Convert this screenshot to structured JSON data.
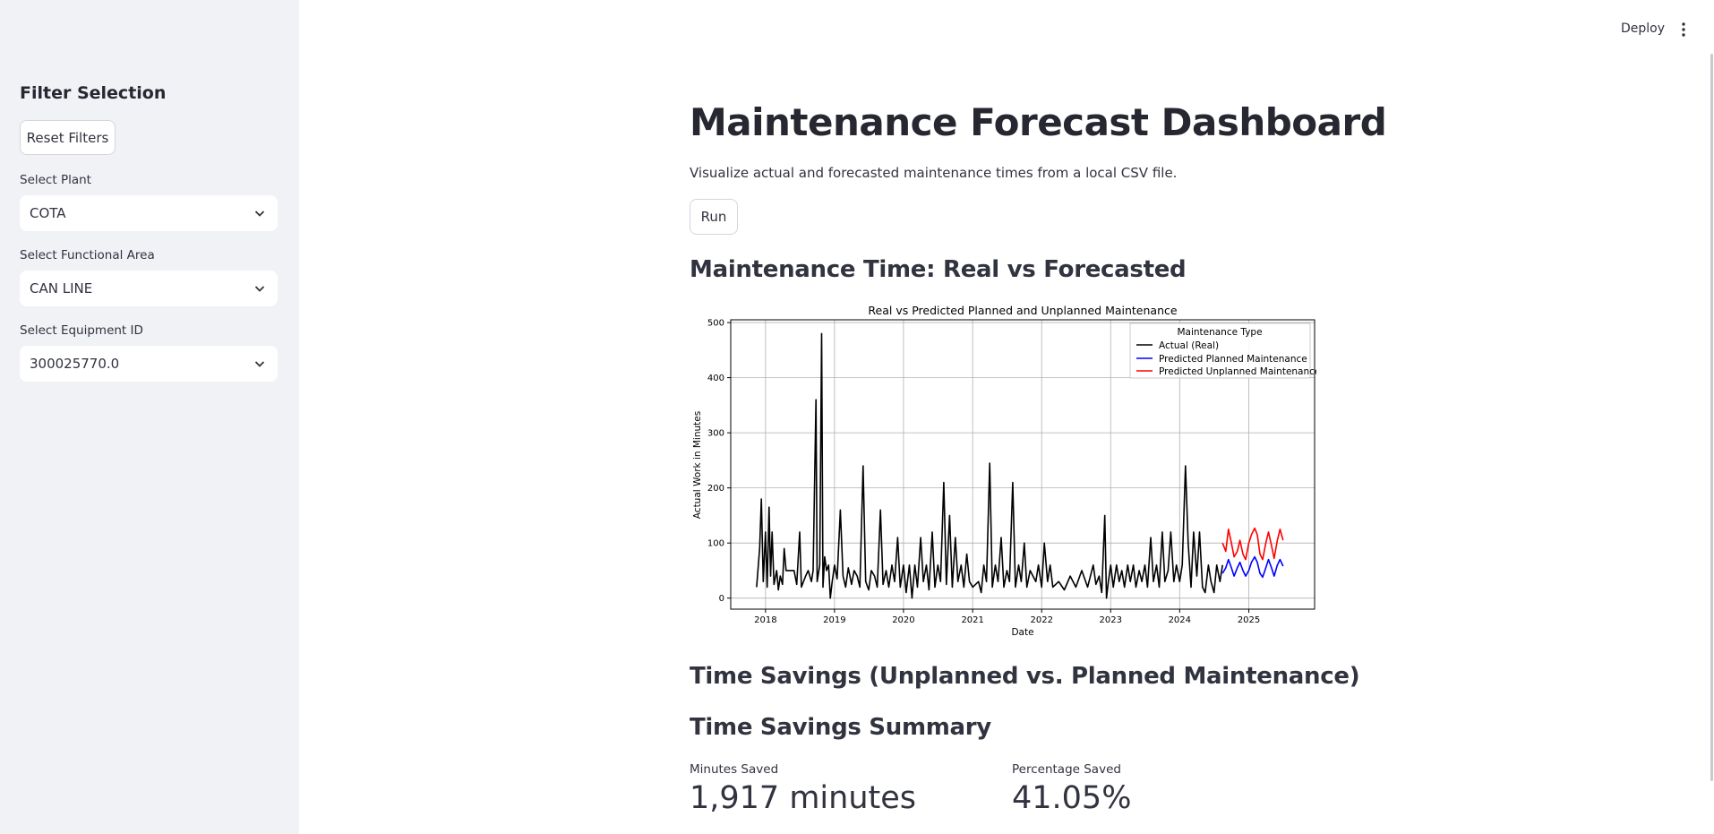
{
  "sidebar": {
    "title": "Filter Selection",
    "reset_label": "Reset Filters",
    "plant": {
      "label": "Select Plant",
      "value": "COTA"
    },
    "functional_area": {
      "label": "Select Functional Area",
      "value": "CAN LINE"
    },
    "equipment": {
      "label": "Select Equipment ID",
      "value": "300025770.0"
    }
  },
  "header": {
    "deploy_label": "Deploy",
    "menu_icon": "vertical-ellipsis-icon"
  },
  "main": {
    "title": "Maintenance Forecast Dashboard",
    "description": "Visualize actual and forecasted maintenance times from a local CSV file.",
    "run_label": "Run",
    "chart_section_title": "Maintenance Time: Real vs Forecasted",
    "savings_title": "Time Savings (Unplanned vs. Planned Maintenance)",
    "summary_title": "Time Savings Summary",
    "metrics": [
      {
        "label": "Minutes Saved",
        "value": "1,917 minutes"
      },
      {
        "label": "Percentage Saved",
        "value": "41.05%"
      }
    ]
  },
  "chart_data": {
    "type": "line",
    "title": "Real vs Predicted Planned and Unplanned Maintenance",
    "xlabel": "Date",
    "ylabel": "Actual Work in Minutes",
    "xlim": [
      "2017-07-01",
      "2025-12-15"
    ],
    "ylim": [
      -20,
      505
    ],
    "yticks": [
      0,
      100,
      200,
      300,
      400,
      500
    ],
    "xticks": [
      "2018",
      "2019",
      "2020",
      "2021",
      "2022",
      "2023",
      "2024",
      "2025"
    ],
    "grid": true,
    "legend": {
      "title": "Maintenance Type",
      "placement": "top-right"
    },
    "series": [
      {
        "name": "Actual (Real)",
        "color": "#000000",
        "points": [
          [
            "2017-11-15",
            20
          ],
          [
            "2017-12-01",
            90
          ],
          [
            "2017-12-10",
            180
          ],
          [
            "2017-12-20",
            30
          ],
          [
            "2018-01-01",
            120
          ],
          [
            "2018-01-10",
            20
          ],
          [
            "2018-01-20",
            165
          ],
          [
            "2018-01-28",
            40
          ],
          [
            "2018-02-05",
            120
          ],
          [
            "2018-02-15",
            25
          ],
          [
            "2018-03-01",
            50
          ],
          [
            "2018-03-10",
            15
          ],
          [
            "2018-03-20",
            40
          ],
          [
            "2018-04-01",
            25
          ],
          [
            "2018-04-10",
            90
          ],
          [
            "2018-04-20",
            50
          ],
          [
            "2018-05-10",
            50
          ],
          [
            "2018-06-01",
            50
          ],
          [
            "2018-06-15",
            25
          ],
          [
            "2018-07-01",
            120
          ],
          [
            "2018-07-10",
            20
          ],
          [
            "2018-08-01",
            40
          ],
          [
            "2018-08-15",
            50
          ],
          [
            "2018-09-01",
            30
          ],
          [
            "2018-09-10",
            50
          ],
          [
            "2018-09-25",
            360
          ],
          [
            "2018-10-01",
            30
          ],
          [
            "2018-10-15",
            60
          ],
          [
            "2018-10-25",
            480
          ],
          [
            "2018-11-01",
            20
          ],
          [
            "2018-11-10",
            75
          ],
          [
            "2018-11-20",
            50
          ],
          [
            "2018-12-01",
            60
          ],
          [
            "2018-12-10",
            0
          ],
          [
            "2018-12-20",
            30
          ],
          [
            "2019-01-01",
            60
          ],
          [
            "2019-01-15",
            35
          ],
          [
            "2019-02-01",
            160
          ],
          [
            "2019-02-15",
            40
          ],
          [
            "2019-03-01",
            20
          ],
          [
            "2019-03-15",
            55
          ],
          [
            "2019-04-01",
            25
          ],
          [
            "2019-04-15",
            50
          ],
          [
            "2019-05-01",
            40
          ],
          [
            "2019-05-15",
            20
          ],
          [
            "2019-06-01",
            240
          ],
          [
            "2019-06-15",
            30
          ],
          [
            "2019-07-01",
            15
          ],
          [
            "2019-07-15",
            50
          ],
          [
            "2019-08-01",
            40
          ],
          [
            "2019-08-15",
            20
          ],
          [
            "2019-09-01",
            160
          ],
          [
            "2019-09-15",
            25
          ],
          [
            "2019-10-01",
            50
          ],
          [
            "2019-10-15",
            20
          ],
          [
            "2019-11-01",
            60
          ],
          [
            "2019-11-15",
            30
          ],
          [
            "2019-12-01",
            110
          ],
          [
            "2019-12-15",
            20
          ],
          [
            "2020-01-01",
            60
          ],
          [
            "2020-01-15",
            10
          ],
          [
            "2020-02-01",
            60
          ],
          [
            "2020-02-15",
            0
          ],
          [
            "2020-03-01",
            60
          ],
          [
            "2020-03-15",
            20
          ],
          [
            "2020-04-01",
            110
          ],
          [
            "2020-04-15",
            30
          ],
          [
            "2020-05-01",
            60
          ],
          [
            "2020-05-15",
            15
          ],
          [
            "2020-06-01",
            120
          ],
          [
            "2020-06-15",
            20
          ],
          [
            "2020-07-01",
            60
          ],
          [
            "2020-07-15",
            30
          ],
          [
            "2020-08-01",
            210
          ],
          [
            "2020-08-15",
            25
          ],
          [
            "2020-09-01",
            150
          ],
          [
            "2020-09-15",
            20
          ],
          [
            "2020-10-01",
            110
          ],
          [
            "2020-10-15",
            30
          ],
          [
            "2020-11-01",
            60
          ],
          [
            "2020-11-15",
            20
          ],
          [
            "2020-12-01",
            80
          ],
          [
            "2020-12-15",
            30
          ],
          [
            "2021-01-01",
            20
          ],
          [
            "2021-02-01",
            30
          ],
          [
            "2021-02-15",
            10
          ],
          [
            "2021-03-01",
            60
          ],
          [
            "2021-03-15",
            30
          ],
          [
            "2021-04-01",
            245
          ],
          [
            "2021-04-15",
            20
          ],
          [
            "2021-05-01",
            60
          ],
          [
            "2021-05-15",
            30
          ],
          [
            "2021-06-01",
            110
          ],
          [
            "2021-06-15",
            20
          ],
          [
            "2021-07-01",
            50
          ],
          [
            "2021-07-15",
            30
          ],
          [
            "2021-08-01",
            210
          ],
          [
            "2021-08-15",
            20
          ],
          [
            "2021-09-01",
            60
          ],
          [
            "2021-09-15",
            30
          ],
          [
            "2021-10-01",
            100
          ],
          [
            "2021-10-15",
            20
          ],
          [
            "2021-11-01",
            50
          ],
          [
            "2021-12-01",
            30
          ],
          [
            "2021-12-15",
            60
          ],
          [
            "2022-01-01",
            20
          ],
          [
            "2022-01-15",
            100
          ],
          [
            "2022-02-01",
            30
          ],
          [
            "2022-02-15",
            60
          ],
          [
            "2022-03-01",
            20
          ],
          [
            "2022-04-01",
            30
          ],
          [
            "2022-05-01",
            15
          ],
          [
            "2022-06-01",
            40
          ],
          [
            "2022-07-01",
            20
          ],
          [
            "2022-08-01",
            50
          ],
          [
            "2022-09-01",
            20
          ],
          [
            "2022-10-01",
            60
          ],
          [
            "2022-10-15",
            25
          ],
          [
            "2022-11-01",
            40
          ],
          [
            "2022-11-15",
            10
          ],
          [
            "2022-12-01",
            150
          ],
          [
            "2022-12-10",
            0
          ],
          [
            "2022-12-20",
            30
          ],
          [
            "2023-01-01",
            60
          ],
          [
            "2023-01-15",
            20
          ],
          [
            "2023-02-01",
            60
          ],
          [
            "2023-02-15",
            30
          ],
          [
            "2023-03-01",
            50
          ],
          [
            "2023-03-15",
            20
          ],
          [
            "2023-04-01",
            60
          ],
          [
            "2023-04-15",
            30
          ],
          [
            "2023-05-01",
            60
          ],
          [
            "2023-05-15",
            20
          ],
          [
            "2023-06-01",
            50
          ],
          [
            "2023-06-15",
            30
          ],
          [
            "2023-07-01",
            60
          ],
          [
            "2023-07-15",
            20
          ],
          [
            "2023-08-01",
            110
          ],
          [
            "2023-08-15",
            30
          ],
          [
            "2023-09-01",
            60
          ],
          [
            "2023-09-15",
            20
          ],
          [
            "2023-10-01",
            120
          ],
          [
            "2023-10-15",
            30
          ],
          [
            "2023-11-01",
            50
          ],
          [
            "2023-11-15",
            120
          ],
          [
            "2023-12-01",
            30
          ],
          [
            "2023-12-15",
            60
          ],
          [
            "2024-01-01",
            30
          ],
          [
            "2024-01-15",
            60
          ],
          [
            "2024-02-01",
            240
          ],
          [
            "2024-02-15",
            100
          ],
          [
            "2024-03-01",
            20
          ],
          [
            "2024-03-15",
            120
          ],
          [
            "2024-04-01",
            40
          ],
          [
            "2024-04-15",
            120
          ],
          [
            "2024-05-01",
            20
          ],
          [
            "2024-05-15",
            10
          ],
          [
            "2024-06-01",
            60
          ],
          [
            "2024-06-15",
            30
          ],
          [
            "2024-07-01",
            10
          ],
          [
            "2024-07-15",
            60
          ],
          [
            "2024-08-01",
            30
          ],
          [
            "2024-08-15",
            60
          ]
        ]
      },
      {
        "name": "Predicted Planned Maintenance",
        "color": "#0000ff",
        "points": [
          [
            "2024-08-15",
            45
          ],
          [
            "2024-09-01",
            55
          ],
          [
            "2024-09-15",
            70
          ],
          [
            "2024-10-01",
            55
          ],
          [
            "2024-10-15",
            40
          ],
          [
            "2024-11-01",
            55
          ],
          [
            "2024-11-15",
            65
          ],
          [
            "2024-12-01",
            50
          ],
          [
            "2024-12-15",
            40
          ],
          [
            "2025-01-01",
            50
          ],
          [
            "2025-01-15",
            65
          ],
          [
            "2025-02-01",
            75
          ],
          [
            "2025-02-15",
            65
          ],
          [
            "2025-03-01",
            45
          ],
          [
            "2025-03-15",
            38
          ],
          [
            "2025-04-01",
            55
          ],
          [
            "2025-04-15",
            70
          ],
          [
            "2025-05-01",
            55
          ],
          [
            "2025-05-15",
            40
          ],
          [
            "2025-06-01",
            60
          ],
          [
            "2025-06-15",
            70
          ],
          [
            "2025-07-01",
            58
          ]
        ]
      },
      {
        "name": "Predicted Unplanned Maintenance",
        "color": "#ff0000",
        "points": [
          [
            "2024-08-15",
            100
          ],
          [
            "2024-09-01",
            85
          ],
          [
            "2024-09-15",
            125
          ],
          [
            "2024-10-01",
            100
          ],
          [
            "2024-10-15",
            75
          ],
          [
            "2024-11-01",
            85
          ],
          [
            "2024-11-15",
            105
          ],
          [
            "2024-12-01",
            80
          ],
          [
            "2024-12-15",
            70
          ],
          [
            "2025-01-01",
            100
          ],
          [
            "2025-01-15",
            115
          ],
          [
            "2025-02-01",
            127
          ],
          [
            "2025-02-15",
            115
          ],
          [
            "2025-03-01",
            80
          ],
          [
            "2025-03-15",
            70
          ],
          [
            "2025-04-01",
            100
          ],
          [
            "2025-04-15",
            120
          ],
          [
            "2025-05-01",
            95
          ],
          [
            "2025-05-15",
            72
          ],
          [
            "2025-06-01",
            105
          ],
          [
            "2025-06-15",
            125
          ],
          [
            "2025-07-01",
            105
          ]
        ]
      }
    ]
  }
}
